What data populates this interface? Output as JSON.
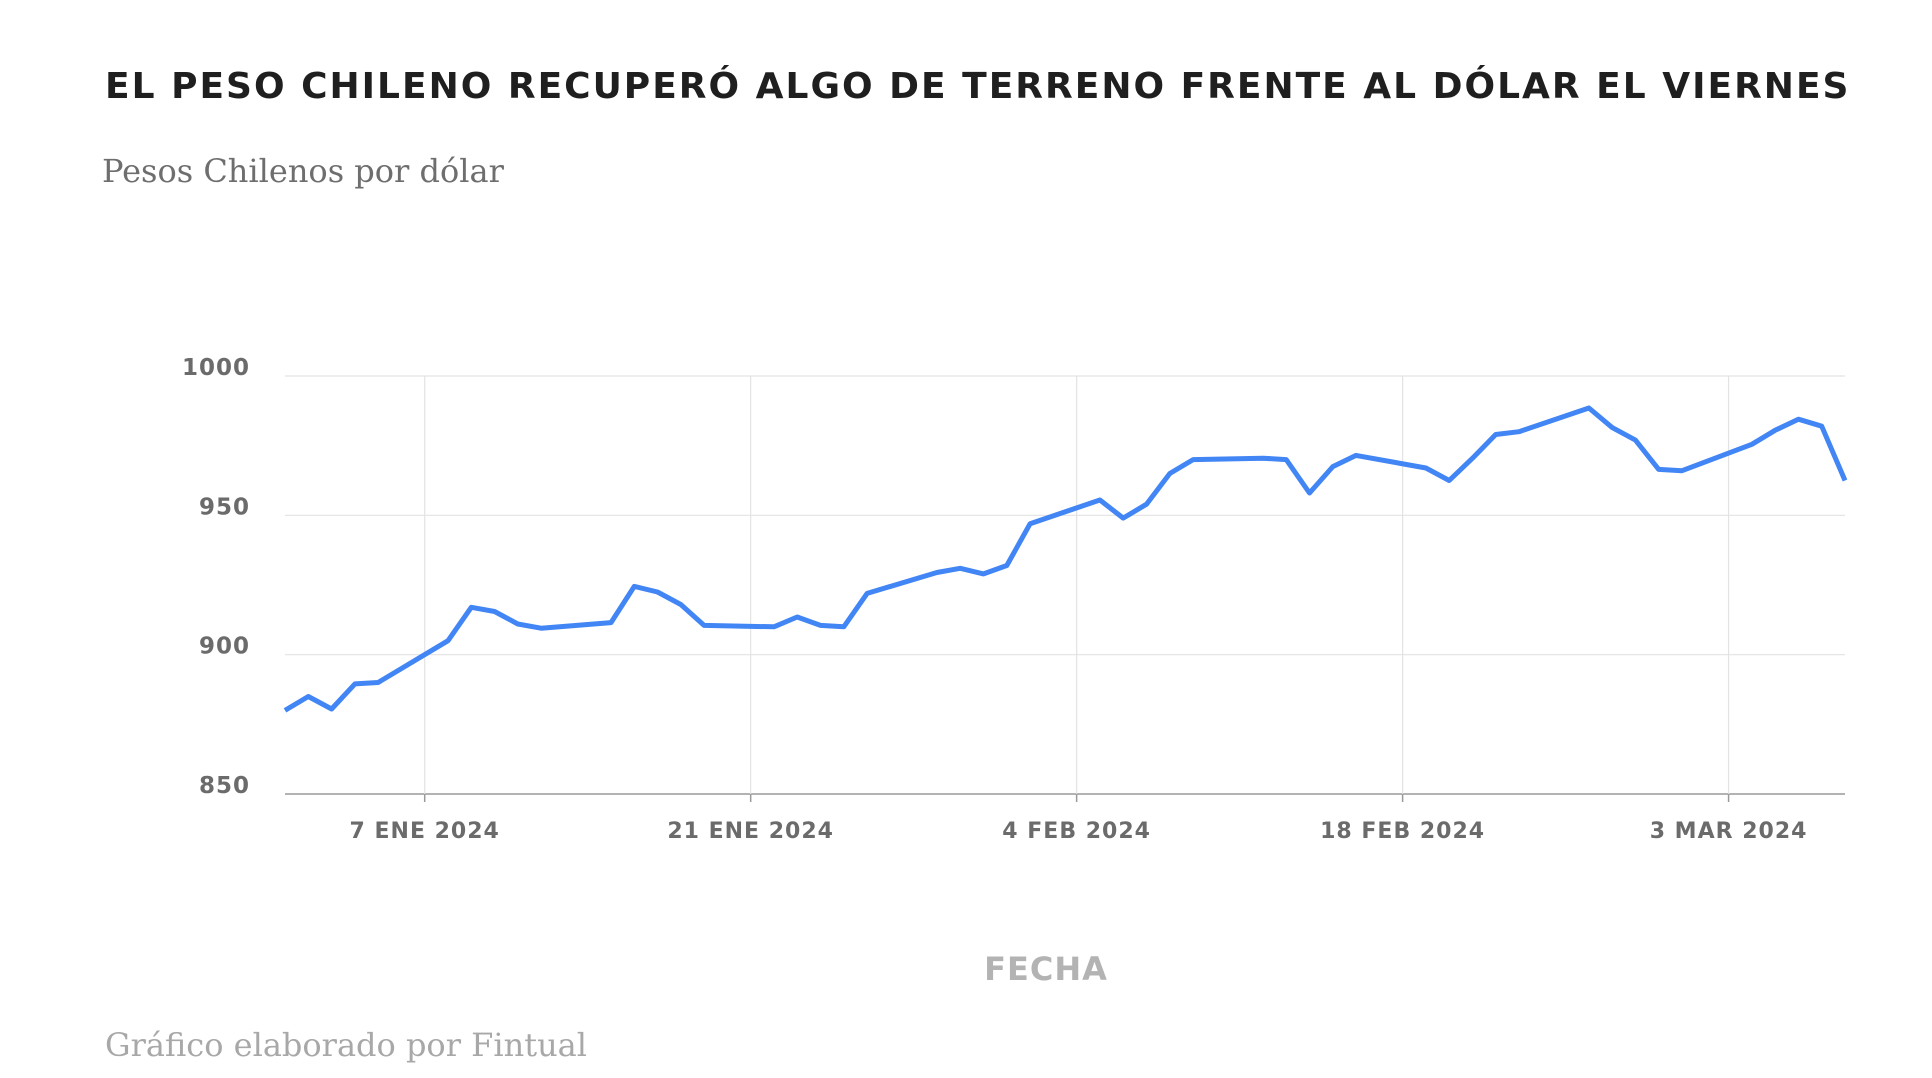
{
  "chart_data": {
    "type": "line",
    "title": "EL PESO CHILENO RECUPERÓ ALGO DE TERRENO FRENTE AL DÓLAR EL VIERNES",
    "subtitle": "Pesos Chilenos por dólar",
    "xlabel": "FECHA",
    "ylabel": "",
    "footer": "Gráfico elaborado por Fintual",
    "ylim": [
      850,
      1000
    ],
    "yticks": [
      850,
      900,
      950,
      1000
    ],
    "xlim": [
      "2024-01-01",
      "2024-03-08"
    ],
    "xticks": [
      {
        "date": "2024-01-07",
        "label": "7 ENE 2024"
      },
      {
        "date": "2024-01-21",
        "label": "21 ENE 2024"
      },
      {
        "date": "2024-02-04",
        "label": "4 FEB 2024"
      },
      {
        "date": "2024-02-18",
        "label": "18 FEB 2024"
      },
      {
        "date": "2024-03-03",
        "label": "3 MAR 2024"
      }
    ],
    "grid": true,
    "line_color": "#4285f4",
    "series": [
      {
        "name": "",
        "points": [
          [
            "2024-01-01",
            880
          ],
          [
            "2024-01-02",
            885
          ],
          [
            "2024-01-03",
            880.5
          ],
          [
            "2024-01-04",
            889.5
          ],
          [
            "2024-01-05",
            890
          ],
          [
            "2024-01-08",
            905
          ],
          [
            "2024-01-09",
            917
          ],
          [
            "2024-01-10",
            915.5
          ],
          [
            "2024-01-11",
            911
          ],
          [
            "2024-01-12",
            909.5
          ],
          [
            "2024-01-15",
            911.5
          ],
          [
            "2024-01-16",
            924.5
          ],
          [
            "2024-01-17",
            922.5
          ],
          [
            "2024-01-18",
            918
          ],
          [
            "2024-01-19",
            910.5
          ],
          [
            "2024-01-22",
            910
          ],
          [
            "2024-01-23",
            913.5
          ],
          [
            "2024-01-24",
            910.5
          ],
          [
            "2024-01-25",
            910
          ],
          [
            "2024-01-26",
            922
          ],
          [
            "2024-01-29",
            929.5
          ],
          [
            "2024-01-30",
            931
          ],
          [
            "2024-01-31",
            929
          ],
          [
            "2024-02-01",
            932
          ],
          [
            "2024-02-02",
            947
          ],
          [
            "2024-02-05",
            955.5
          ],
          [
            "2024-02-06",
            949
          ],
          [
            "2024-02-07",
            954
          ],
          [
            "2024-02-08",
            965
          ],
          [
            "2024-02-09",
            970
          ],
          [
            "2024-02-12",
            970.5
          ],
          [
            "2024-02-13",
            970
          ],
          [
            "2024-02-14",
            958
          ],
          [
            "2024-02-15",
            967.5
          ],
          [
            "2024-02-16",
            971.5
          ],
          [
            "2024-02-19",
            967
          ],
          [
            "2024-02-20",
            962.5
          ],
          [
            "2024-02-21",
            970.5
          ],
          [
            "2024-02-22",
            979
          ],
          [
            "2024-02-23",
            980
          ],
          [
            "2024-02-26",
            988.5
          ],
          [
            "2024-02-27",
            981.5
          ],
          [
            "2024-02-28",
            977
          ],
          [
            "2024-02-29",
            966.5
          ],
          [
            "2024-03-01",
            966
          ],
          [
            "2024-03-04",
            975.5
          ],
          [
            "2024-03-05",
            980.5
          ],
          [
            "2024-03-06",
            984.5
          ],
          [
            "2024-03-07",
            982
          ],
          [
            "2024-03-08",
            962.5
          ]
        ]
      }
    ]
  }
}
